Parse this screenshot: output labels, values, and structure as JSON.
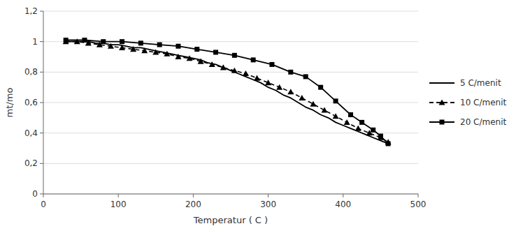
{
  "chart_data": {
    "type": "line",
    "xlabel": "Temperatur ( C )",
    "ylabel": "mt/mo",
    "xlim": [
      0,
      500
    ],
    "ylim": [
      0,
      1.2
    ],
    "xticks": [
      0,
      100,
      200,
      300,
      400,
      500
    ],
    "yticks": [
      0,
      {
        "value": 0.2,
        "label": "0,2"
      },
      {
        "value": 0.4,
        "label": "0,4"
      },
      {
        "value": 0.6,
        "label": "0,6"
      },
      {
        "value": 0.8,
        "label": "0,8"
      },
      1,
      {
        "value": 1.2,
        "label": "1,2"
      }
    ],
    "grid": true,
    "legend": "right",
    "series": [
      {
        "name": "5 C/menit",
        "color": "#000000",
        "line_style": "solid",
        "x": [
          30,
          40,
          50,
          60,
          70,
          80,
          90,
          100,
          110,
          120,
          130,
          140,
          150,
          160,
          170,
          180,
          190,
          200,
          210,
          220,
          230,
          240,
          250,
          260,
          270,
          280,
          290,
          300,
          310,
          320,
          330,
          340,
          350,
          360,
          370,
          380,
          390,
          400,
          410,
          420,
          430,
          440,
          450,
          460
        ],
        "values": [
          1.0,
          1.0,
          1.0,
          1.0,
          0.99,
          0.99,
          0.98,
          0.98,
          0.97,
          0.96,
          0.96,
          0.95,
          0.94,
          0.93,
          0.92,
          0.91,
          0.9,
          0.89,
          0.88,
          0.86,
          0.85,
          0.83,
          0.81,
          0.79,
          0.77,
          0.75,
          0.73,
          0.7,
          0.68,
          0.65,
          0.63,
          0.6,
          0.57,
          0.55,
          0.52,
          0.5,
          0.47,
          0.45,
          0.43,
          0.41,
          0.39,
          0.37,
          0.35,
          0.33
        ]
      },
      {
        "name": "10 C/menit",
        "color": "#000000",
        "line_style": "dashed",
        "marker": "triangle",
        "x": [
          30,
          45,
          60,
          75,
          90,
          105,
          120,
          135,
          150,
          165,
          180,
          195,
          210,
          225,
          240,
          255,
          270,
          285,
          300,
          315,
          330,
          345,
          360,
          375,
          390,
          405,
          420,
          435,
          450,
          460
        ],
        "values": [
          1.0,
          1.0,
          0.99,
          0.98,
          0.97,
          0.96,
          0.95,
          0.94,
          0.93,
          0.92,
          0.9,
          0.89,
          0.87,
          0.85,
          0.83,
          0.81,
          0.79,
          0.76,
          0.73,
          0.7,
          0.67,
          0.63,
          0.59,
          0.55,
          0.51,
          0.47,
          0.43,
          0.4,
          0.37,
          0.34
        ]
      },
      {
        "name": "20 C/menit",
        "color": "#000000",
        "line_style": "solid",
        "marker": "square",
        "x": [
          30,
          55,
          80,
          105,
          130,
          155,
          180,
          205,
          230,
          255,
          280,
          305,
          330,
          350,
          370,
          390,
          410,
          425,
          440,
          450,
          460
        ],
        "values": [
          1.01,
          1.01,
          1.0,
          1.0,
          0.99,
          0.98,
          0.97,
          0.95,
          0.93,
          0.91,
          0.88,
          0.85,
          0.8,
          0.77,
          0.7,
          0.61,
          0.52,
          0.47,
          0.42,
          0.38,
          0.33
        ]
      }
    ]
  }
}
